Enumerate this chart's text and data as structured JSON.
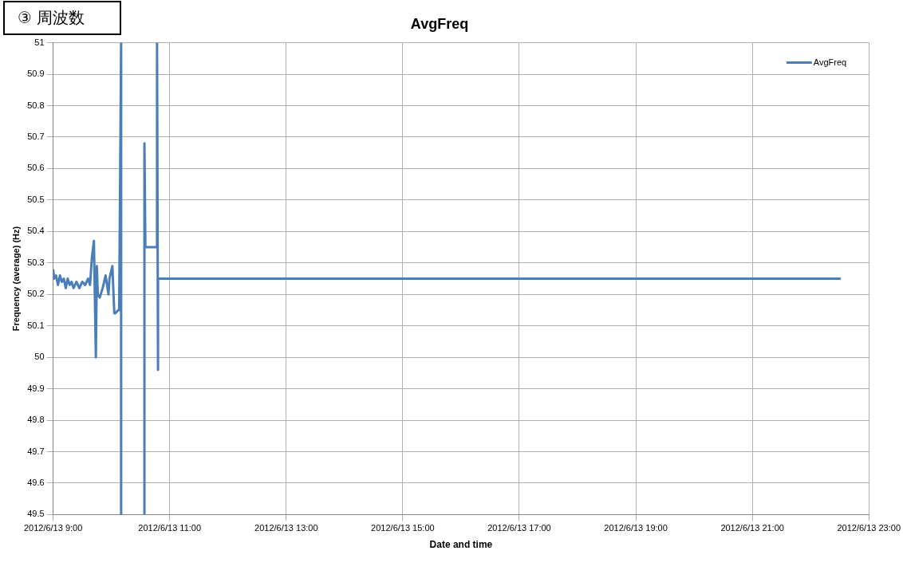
{
  "chart_data": {
    "type": "line",
    "title": "AvgFreq",
    "xlabel": "Date and time",
    "ylabel": "Frequency (average) (Hz)",
    "annotations": [
      "③ 周波数"
    ],
    "series": [
      {
        "name": "AvgFreq",
        "color": "#4a7ebb",
        "x": [
          "2012-06-13T09:00",
          "2012-06-13T09:01",
          "2012-06-13T09:03",
          "2012-06-13T09:05",
          "2012-06-13T09:07",
          "2012-06-13T09:09",
          "2012-06-13T09:11",
          "2012-06-13T09:13",
          "2012-06-13T09:15",
          "2012-06-13T09:17",
          "2012-06-13T09:19",
          "2012-06-13T09:21",
          "2012-06-13T09:24",
          "2012-06-13T09:27",
          "2012-06-13T09:30",
          "2012-06-13T09:33",
          "2012-06-13T09:36",
          "2012-06-13T09:38",
          "2012-06-13T09:40",
          "2012-06-13T09:42",
          "2012-06-13T09:44",
          "2012-06-13T09:45",
          "2012-06-13T09:46",
          "2012-06-13T09:48",
          "2012-06-13T09:51",
          "2012-06-13T09:54",
          "2012-06-13T09:57",
          "2012-06-13T09:58",
          "2012-06-13T10:01",
          "2012-06-13T10:03",
          "2012-06-13T10:04",
          "2012-06-13T10:07",
          "2012-06-13T10:08",
          "2012-06-13T10:10",
          "2012-06-13T10:10",
          null,
          "2012-06-13T10:34",
          "2012-06-13T10:34",
          "2012-06-13T10:35",
          "2012-06-13T10:47",
          "2012-06-13T10:47",
          "2012-06-13T10:48",
          "2012-06-13T10:48",
          "2012-06-13T22:31"
        ],
        "values": [
          50.28,
          50.25,
          50.26,
          50.23,
          50.26,
          50.24,
          50.25,
          50.22,
          50.25,
          50.23,
          50.24,
          50.22,
          50.24,
          50.22,
          50.24,
          50.23,
          50.25,
          50.23,
          50.32,
          50.37,
          50.0,
          50.29,
          50.2,
          50.19,
          50.22,
          50.26,
          50.2,
          50.25,
          50.29,
          50.14,
          50.14,
          50.15,
          50.15,
          51,
          49.5,
          null,
          49.5,
          50.68,
          50.35,
          50.35,
          51,
          49.96,
          50.25,
          50.25
        ]
      }
    ],
    "xlim": [
      "2012-06-13T09:00",
      "2012-06-13T23:00"
    ],
    "xticks": [
      {
        "value": "2012-06-13T09:00",
        "label": "2012/6/13 9:00"
      },
      {
        "value": "2012-06-13T11:00",
        "label": "2012/6/13 11:00"
      },
      {
        "value": "2012-06-13T13:00",
        "label": "2012/6/13 13:00"
      },
      {
        "value": "2012-06-13T15:00",
        "label": "2012/6/13 15:00"
      },
      {
        "value": "2012-06-13T17:00",
        "label": "2012/6/13 17:00"
      },
      {
        "value": "2012-06-13T19:00",
        "label": "2012/6/13 19:00"
      },
      {
        "value": "2012-06-13T21:00",
        "label": "2012/6/13 21:00"
      },
      {
        "value": "2012-06-13T23:00",
        "label": "2012/6/13 23:00"
      }
    ],
    "ylim": [
      49.5,
      51
    ],
    "yticks": [
      49.5,
      49.6,
      49.7,
      49.8,
      49.9,
      50,
      50.1,
      50.2,
      50.3,
      50.4,
      50.5,
      50.6,
      50.7,
      50.8,
      50.9,
      51
    ],
    "grid": true,
    "legend": "top right",
    "marker": "none",
    "line_style": "solid"
  }
}
